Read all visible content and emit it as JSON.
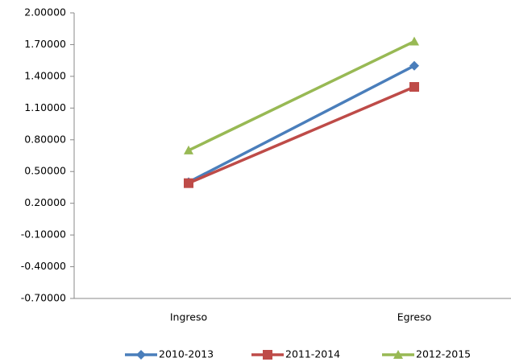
{
  "chart_data": {
    "type": "line",
    "categories": [
      "Ingreso",
      "Egreso"
    ],
    "series": [
      {
        "name": "2010-2013",
        "color": "#4a7ebb",
        "marker": "diamond",
        "values": [
          0.4,
          1.5
        ]
      },
      {
        "name": "2011-2014",
        "color": "#be4b48",
        "marker": "square",
        "values": [
          0.39,
          1.3
        ]
      },
      {
        "name": "2012-2015",
        "color": "#98b954",
        "marker": "triangle",
        "values": [
          0.7,
          1.73
        ]
      }
    ],
    "ylim": [
      -0.7,
      2.0
    ],
    "yticks": [
      {
        "value": 2.0,
        "label": "2.00000"
      },
      {
        "value": 1.7,
        "label": "1.70000"
      },
      {
        "value": 1.4,
        "label": "1.40000"
      },
      {
        "value": 1.1,
        "label": "1.10000"
      },
      {
        "value": 0.8,
        "label": "0.80000"
      },
      {
        "value": 0.5,
        "label": "0.50000"
      },
      {
        "value": 0.2,
        "label": "0.20000"
      },
      {
        "value": -0.1,
        "label": "-0.10000"
      },
      {
        "value": -0.4,
        "label": "-0.40000"
      },
      {
        "value": -0.7,
        "label": "-0.70000"
      }
    ],
    "grid": false,
    "legend": "bottom"
  }
}
